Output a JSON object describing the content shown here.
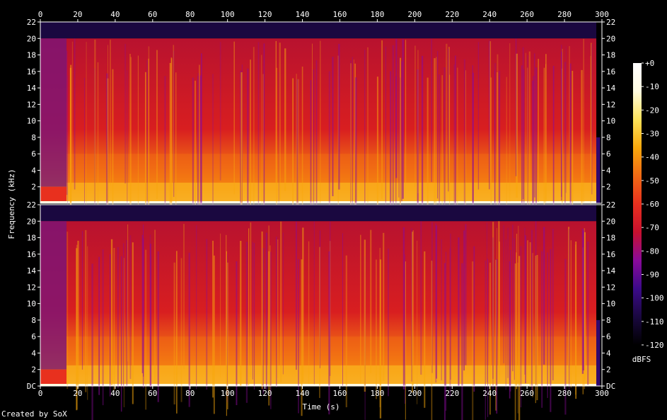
{
  "footer": {
    "credit": "Created by SoX"
  },
  "chart_data": {
    "type": "heatmap",
    "title": "",
    "xlabel": "Time (s)",
    "ylabel": "Frequency (kHz)",
    "xlim": [
      0,
      300
    ],
    "x_ticks": [
      "0",
      "20",
      "40",
      "60",
      "80",
      "100",
      "120",
      "140",
      "160",
      "180",
      "200",
      "220",
      "240",
      "260",
      "280",
      "300"
    ],
    "channels": [
      {
        "ylim": [
          0,
          22
        ],
        "y_ticks": [
          "2",
          "4",
          "6",
          "8",
          "10",
          "12",
          "14",
          "16",
          "18",
          "20",
          "22"
        ]
      },
      {
        "ylim": [
          0,
          22
        ],
        "y_ticks": [
          "DC",
          "2",
          "4",
          "6",
          "8",
          "10",
          "12",
          "14",
          "16",
          "18",
          "20",
          "22"
        ]
      }
    ],
    "colorbar": {
      "label": "dBFS",
      "range": [
        -120,
        0
      ],
      "ticks": [
        "+0",
        "-10",
        "-20",
        "-30",
        "-40",
        "-50",
        "-60",
        "-70",
        "-80",
        "-90",
        "-100",
        "-110",
        "-120"
      ],
      "colors": [
        "#000000",
        "#1a0840",
        "#3c0a8a",
        "#8a0a9a",
        "#c8102e",
        "#e8301e",
        "#f06a14",
        "#f8a80c",
        "#fde25a",
        "#fffbe0",
        "#ffffff"
      ]
    },
    "grid": false,
    "signal": {
      "start_s": 0,
      "end_s": 297,
      "cutoff_khz": 20,
      "lowband_khz": 6
    }
  }
}
